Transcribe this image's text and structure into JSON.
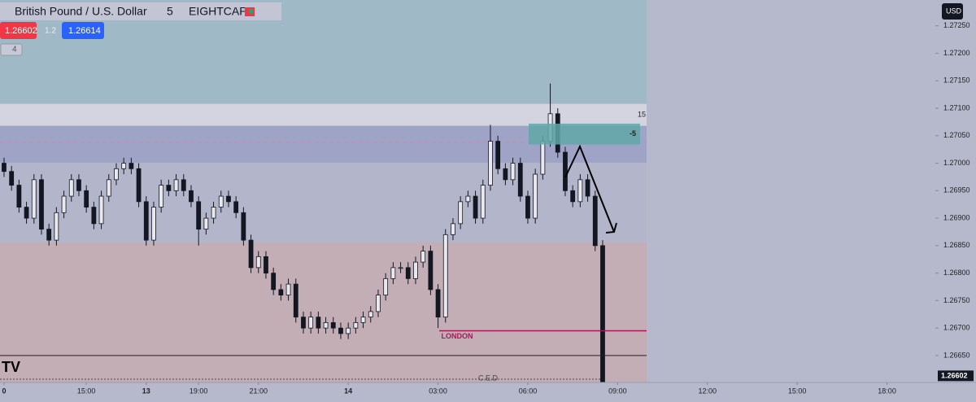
{
  "header": {
    "symbol": "British Pound / U.S. Dollar",
    "interval": "5",
    "broker": "EIGHTCAP",
    "sell_price": "1.26602",
    "spread": "1.2",
    "buy_price": "1.26614",
    "indicator_count": "4",
    "currency": "USD"
  },
  "chart_data": {
    "type": "candlestick",
    "xlim": [
      -0.54,
      124.46
    ],
    "xticks": [
      {
        "value": 0,
        "label": "0"
      },
      {
        "value": 11,
        "label": "15:00"
      },
      {
        "value": 19,
        "label": "13"
      },
      {
        "value": 26,
        "label": "19:00"
      },
      {
        "value": 34,
        "label": "21:00"
      },
      {
        "value": 46,
        "label": "14"
      },
      {
        "value": 58,
        "label": "03:00"
      },
      {
        "value": 70,
        "label": "06:00"
      },
      {
        "value": 82,
        "label": "09:00"
      },
      {
        "value": 94,
        "label": "12:00"
      },
      {
        "value": 106,
        "label": "15:00"
      },
      {
        "value": 118,
        "label": "18:00"
      }
    ],
    "ylim": [
      1.26601,
      1.27297
    ],
    "yticks": [
      {
        "value": 1.2725,
        "label": "1.27250"
      },
      {
        "value": 1.272,
        "label": "1.27200"
      },
      {
        "value": 1.2715,
        "label": "1.27150"
      },
      {
        "value": 1.271,
        "label": "1.27100"
      },
      {
        "value": 1.2705,
        "label": "1.27050"
      },
      {
        "value": 1.27,
        "label": "1.27000"
      },
      {
        "value": 1.2695,
        "label": "1.26950"
      },
      {
        "value": 1.269,
        "label": "1.26900"
      },
      {
        "value": 1.2685,
        "label": "1.26850"
      },
      {
        "value": 1.268,
        "label": "1.26800"
      },
      {
        "value": 1.2675,
        "label": "1.26750"
      },
      {
        "value": 1.267,
        "label": "1.26700"
      },
      {
        "value": 1.2665,
        "label": "1.26650"
      }
    ],
    "open": [
      1.27,
      1.26985,
      1.2696,
      1.2692,
      1.269,
      1.2697,
      1.2688,
      1.2686,
      1.2691,
      1.2694,
      1.2697,
      1.2695,
      1.2692,
      1.2689,
      1.2694,
      1.2697,
      1.2699,
      1.27,
      1.2699,
      1.2693,
      1.2686,
      1.2692,
      1.2696,
      1.2695,
      1.2697,
      1.2695,
      1.2693,
      1.2688,
      1.269,
      1.2692,
      1.2694,
      1.2693,
      1.2691,
      1.2686,
      1.2681,
      1.2683,
      1.268,
      1.2677,
      1.2676,
      1.2678,
      1.2672,
      1.267,
      1.2672,
      1.267,
      1.2671,
      1.267,
      1.2669,
      1.267,
      1.2671,
      1.2672,
      1.2673,
      1.2676,
      1.2679,
      1.2681,
      1.2681,
      1.2679,
      1.2682,
      1.2684,
      1.2677,
      1.2672,
      1.2687,
      1.2689,
      1.2693,
      1.2694,
      1.269,
      1.2696,
      1.2704,
      1.2699,
      1.2697,
      1.27,
      1.2694,
      1.269,
      1.2698,
      1.2704,
      1.2709,
      1.2702,
      1.2695,
      1.2693,
      1.2697,
      1.2694,
      1.2685
    ],
    "high": [
      1.2701,
      1.26995,
      1.2697,
      1.2693,
      1.2698,
      1.2698,
      1.2689,
      1.2692,
      1.2695,
      1.2698,
      1.2698,
      1.2696,
      1.2693,
      1.2695,
      1.2698,
      1.27,
      1.2701,
      1.2701,
      1.27,
      1.2694,
      1.2693,
      1.2697,
      1.2697,
      1.2698,
      1.2698,
      1.2696,
      1.2694,
      1.2691,
      1.2693,
      1.2695,
      1.2695,
      1.2694,
      1.2692,
      1.2687,
      1.2684,
      1.2684,
      1.2681,
      1.2678,
      1.2679,
      1.2679,
      1.2673,
      1.2673,
      1.2673,
      1.2672,
      1.2672,
      1.2671,
      1.2671,
      1.2672,
      1.2673,
      1.2674,
      1.2677,
      1.268,
      1.2682,
      1.2682,
      1.2682,
      1.2683,
      1.2685,
      1.2685,
      1.2678,
      1.2688,
      1.269,
      1.2694,
      1.2695,
      1.2695,
      1.2697,
      1.2707,
      1.2705,
      1.27,
      1.2701,
      1.2701,
      1.2695,
      1.2699,
      1.2705,
      1.27145,
      1.271,
      1.2703,
      1.2696,
      1.2698,
      1.2698,
      1.2695,
      1.2686
    ],
    "low": [
      1.26975,
      1.2695,
      1.2691,
      1.2689,
      1.2689,
      1.2687,
      1.2685,
      1.2685,
      1.269,
      1.2693,
      1.2694,
      1.2691,
      1.2688,
      1.2688,
      1.2693,
      1.2696,
      1.2698,
      1.2698,
      1.2692,
      1.2685,
      1.2685,
      1.2691,
      1.2694,
      1.2694,
      1.2694,
      1.2692,
      1.2685,
      1.2687,
      1.2689,
      1.2691,
      1.2692,
      1.269,
      1.2685,
      1.268,
      1.268,
      1.2679,
      1.2676,
      1.2675,
      1.2675,
      1.2671,
      1.2669,
      1.2669,
      1.2669,
      1.2669,
      1.2669,
      1.2668,
      1.2668,
      1.2669,
      1.267,
      1.2671,
      1.2672,
      1.2675,
      1.2678,
      1.268,
      1.2678,
      1.2678,
      1.2681,
      1.2676,
      1.267,
      1.2671,
      1.2686,
      1.2688,
      1.2692,
      1.2689,
      1.2689,
      1.2695,
      1.2698,
      1.2696,
      1.2696,
      1.2693,
      1.2689,
      1.2689,
      1.2697,
      1.2703,
      1.2701,
      1.2694,
      1.2692,
      1.2692,
      1.2693,
      1.2684,
      1.26601
    ],
    "close": [
      1.26985,
      1.2696,
      1.2692,
      1.269,
      1.2697,
      1.2688,
      1.2686,
      1.2691,
      1.2694,
      1.2697,
      1.2695,
      1.2692,
      1.2689,
      1.2694,
      1.2697,
      1.2699,
      1.27,
      1.2699,
      1.2693,
      1.2686,
      1.2692,
      1.2696,
      1.2695,
      1.2697,
      1.2695,
      1.2693,
      1.2688,
      1.269,
      1.2692,
      1.2694,
      1.2693,
      1.2691,
      1.2686,
      1.2681,
      1.2683,
      1.268,
      1.2677,
      1.2676,
      1.2678,
      1.2672,
      1.267,
      1.2672,
      1.267,
      1.2671,
      1.267,
      1.2669,
      1.267,
      1.2671,
      1.2672,
      1.2673,
      1.2676,
      1.2679,
      1.2681,
      1.2681,
      1.2679,
      1.2682,
      1.2684,
      1.2677,
      1.2672,
      1.2687,
      1.2689,
      1.2693,
      1.2694,
      1.269,
      1.2696,
      1.2704,
      1.2699,
      1.2697,
      1.27,
      1.2694,
      1.269,
      1.2698,
      1.2704,
      1.2709,
      1.2702,
      1.2695,
      1.2693,
      1.2697,
      1.2694,
      1.2685,
      1.26602
    ],
    "color": "#131722",
    "zones": [
      {
        "top": 1.27297,
        "bottom": 1.27108,
        "color": "#a0b9c7"
      },
      {
        "top": 1.27108,
        "bottom": 1.27068,
        "color": "#d3d4e0"
      },
      {
        "top": 1.27068,
        "bottom": 1.27001,
        "color": "#9fa4c6"
      },
      {
        "top": 1.26856,
        "bottom": 1.26601,
        "color": "#c3aeb6"
      }
    ],
    "box": {
      "top": 1.27072,
      "bottom": 1.27034,
      "label": "-5",
      "color": "#5fa8a8"
    },
    "annotations": [
      {
        "text": "15",
        "price": 1.27088
      },
      {
        "text": "LONDON",
        "price": 1.26695,
        "color": "#a3195b"
      },
      {
        "text": "C.E.D",
        "price": 1.26607,
        "color": "#444444"
      }
    ],
    "black_line": 1.2665,
    "dashed_line": 1.27038
  }
}
